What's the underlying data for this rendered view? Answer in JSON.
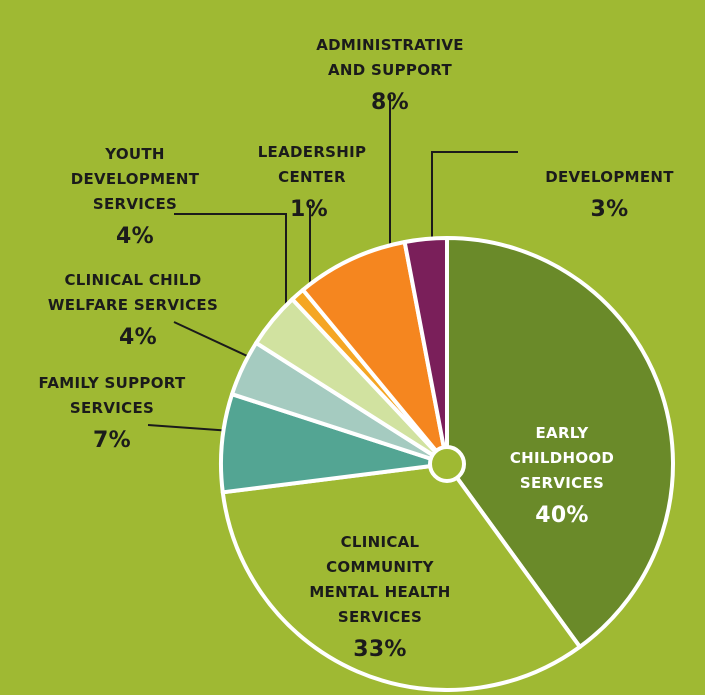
{
  "chart_data": {
    "type": "pie",
    "slices": [
      {
        "label": "EARLY\nCHILDHOOD\nSERVICES",
        "value": 40,
        "value_label": "40%",
        "color": "#6a8a29"
      },
      {
        "label": "CLINICAL\nCOMMUNITY\nMENTAL HEALTH\nSERVICES",
        "value": 33,
        "value_label": "33%",
        "color": "#9fb933"
      },
      {
        "label": "FAMILY SUPPORT\nSERVICES",
        "value": 7,
        "value_label": "7%",
        "color": "#53a593"
      },
      {
        "label": "CLINICAL CHILD\nWELFARE SERVICES",
        "value": 4,
        "value_label": "4%",
        "color": "#a5cbc0"
      },
      {
        "label": "YOUTH\nDEVELOPMENT\nSERVICES",
        "value": 4,
        "value_label": "4%",
        "color": "#d1e2a0"
      },
      {
        "label": "LEADERSHIP\nCENTER",
        "value": 1,
        "value_label": "1%",
        "color": "#f5a623"
      },
      {
        "label": "ADMINISTRATIVE\nAND SUPPORT",
        "value": 8,
        "value_label": "8%",
        "color": "#f5861f"
      },
      {
        "label": "DEVELOPMENT",
        "value": 3,
        "value_label": "3%",
        "color": "#7a1f5a"
      }
    ],
    "start": "12 o'clock",
    "direction": "clockwise",
    "legend": "none"
  }
}
